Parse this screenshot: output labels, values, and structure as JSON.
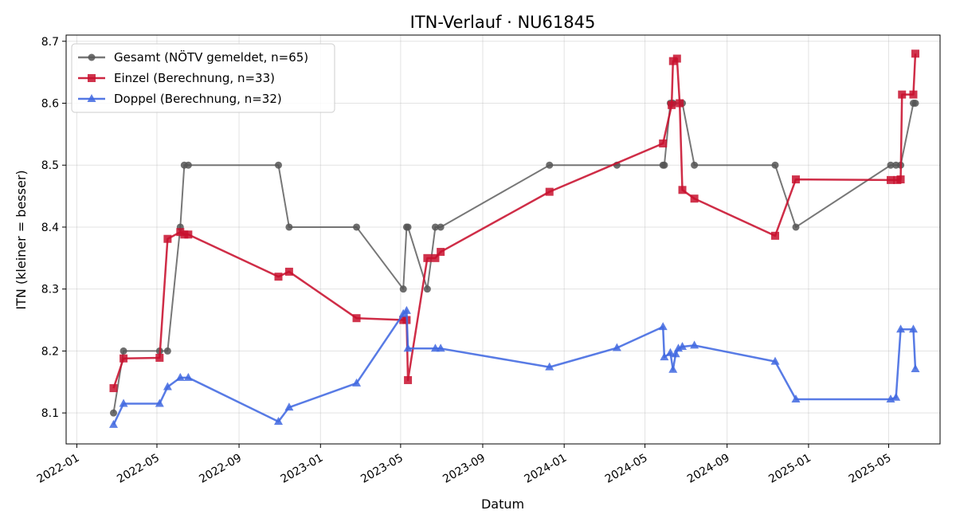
{
  "chart_data": {
    "type": "line",
    "title": "ITN-Verlauf · NU61845",
    "xlabel": "Datum",
    "ylabel": "ITN  (kleiner = besser)",
    "xlim": [
      "2021-12-16",
      "2025-07-17"
    ],
    "ylim": [
      8.05,
      8.71
    ],
    "x_ticks": [
      "2022-01-01",
      "2022-05-01",
      "2022-09-01",
      "2023-01-01",
      "2023-05-01",
      "2023-09-01",
      "2024-01-01",
      "2024-05-01",
      "2024-09-01",
      "2025-01-01",
      "2025-05-01"
    ],
    "x_tick_labels": [
      "2022-01",
      "2022-05",
      "2022-09",
      "2023-01",
      "2023-05",
      "2023-09",
      "2024-01",
      "2024-05",
      "2024-09",
      "2025-01",
      "2025-05"
    ],
    "y_ticks": [
      8.1,
      8.2,
      8.3,
      8.4,
      8.5,
      8.6,
      8.7
    ],
    "y_tick_labels": [
      "8.1",
      "8.2",
      "8.3",
      "8.4",
      "8.5",
      "8.6",
      "8.7"
    ],
    "grid": true,
    "legend_position": "top-left",
    "series": [
      {
        "name": "Gesamt (NÖTV gemeldet, n=65)",
        "color": "#555555",
        "marker": "circle",
        "points": [
          [
            "2022-02-25",
            8.1
          ],
          [
            "2022-03-12",
            8.2
          ],
          [
            "2022-05-05",
            8.2
          ],
          [
            "2022-05-17",
            8.2
          ],
          [
            "2022-06-05",
            8.4
          ],
          [
            "2022-06-11",
            8.5
          ],
          [
            "2022-06-17",
            8.5
          ],
          [
            "2022-10-30",
            8.5
          ],
          [
            "2022-11-15",
            8.4
          ],
          [
            "2023-02-24",
            8.4
          ],
          [
            "2023-05-05",
            8.3
          ],
          [
            "2023-05-10",
            8.4
          ],
          [
            "2023-05-12",
            8.4
          ],
          [
            "2023-06-10",
            8.3
          ],
          [
            "2023-06-22",
            8.4
          ],
          [
            "2023-06-30",
            8.4
          ],
          [
            "2023-12-10",
            8.5
          ],
          [
            "2024-03-20",
            8.5
          ],
          [
            "2024-05-28",
            8.5
          ],
          [
            "2024-05-30",
            8.5
          ],
          [
            "2024-06-08",
            8.6
          ],
          [
            "2024-06-12",
            8.6
          ],
          [
            "2024-06-26",
            8.6
          ],
          [
            "2024-07-14",
            8.5
          ],
          [
            "2024-11-12",
            8.5
          ],
          [
            "2024-12-13",
            8.4
          ],
          [
            "2025-05-04",
            8.5
          ],
          [
            "2025-05-12",
            8.5
          ],
          [
            "2025-05-19",
            8.5
          ],
          [
            "2025-06-07",
            8.6
          ],
          [
            "2025-06-10",
            8.6
          ]
        ]
      },
      {
        "name": "Einzel (Berechnung, n=33)",
        "color": "#c8102e",
        "marker": "square",
        "points": [
          [
            "2022-02-25",
            8.14
          ],
          [
            "2022-03-12",
            8.188
          ],
          [
            "2022-05-05",
            8.189
          ],
          [
            "2022-05-17",
            8.381
          ],
          [
            "2022-06-05",
            8.392
          ],
          [
            "2022-06-11",
            8.388
          ],
          [
            "2022-06-17",
            8.388
          ],
          [
            "2022-10-30",
            8.32
          ],
          [
            "2022-11-15",
            8.328
          ],
          [
            "2023-02-24",
            8.253
          ],
          [
            "2023-05-05",
            8.25
          ],
          [
            "2023-05-10",
            8.25
          ],
          [
            "2023-05-12",
            8.153
          ],
          [
            "2023-06-10",
            8.35
          ],
          [
            "2023-06-22",
            8.35
          ],
          [
            "2023-06-30",
            8.36
          ],
          [
            "2023-12-10",
            8.457
          ],
          [
            "2024-05-28",
            8.535
          ],
          [
            "2024-06-10",
            8.597
          ],
          [
            "2024-06-12",
            8.668
          ],
          [
            "2024-06-18",
            8.672
          ],
          [
            "2024-06-22",
            8.6
          ],
          [
            "2024-06-26",
            8.46
          ],
          [
            "2024-07-14",
            8.446
          ],
          [
            "2024-11-12",
            8.386
          ],
          [
            "2024-12-13",
            8.477
          ],
          [
            "2025-05-04",
            8.476
          ],
          [
            "2025-05-14",
            8.476
          ],
          [
            "2025-05-19",
            8.477
          ],
          [
            "2025-05-21",
            8.614
          ],
          [
            "2025-06-07",
            8.614
          ],
          [
            "2025-06-10",
            8.68
          ]
        ]
      },
      {
        "name": "Doppel (Berechnung, n=32)",
        "color": "#4169e1",
        "marker": "triangle",
        "points": [
          [
            "2022-02-25",
            8.081
          ],
          [
            "2022-03-12",
            8.115
          ],
          [
            "2022-05-05",
            8.115
          ],
          [
            "2022-05-17",
            8.142
          ],
          [
            "2022-06-05",
            8.157
          ],
          [
            "2022-06-17",
            8.157
          ],
          [
            "2022-10-30",
            8.086
          ],
          [
            "2022-11-15",
            8.109
          ],
          [
            "2023-02-24",
            8.148
          ],
          [
            "2023-05-05",
            8.26
          ],
          [
            "2023-05-10",
            8.265
          ],
          [
            "2023-05-12",
            8.204
          ],
          [
            "2023-06-22",
            8.204
          ],
          [
            "2023-06-30",
            8.204
          ],
          [
            "2023-12-10",
            8.174
          ],
          [
            "2024-03-20",
            8.205
          ],
          [
            "2024-05-28",
            8.239
          ],
          [
            "2024-05-30",
            8.19
          ],
          [
            "2024-06-08",
            8.197
          ],
          [
            "2024-06-12",
            8.17
          ],
          [
            "2024-06-16",
            8.195
          ],
          [
            "2024-06-20",
            8.204
          ],
          [
            "2024-06-26",
            8.207
          ],
          [
            "2024-07-14",
            8.209
          ],
          [
            "2024-11-12",
            8.183
          ],
          [
            "2024-12-13",
            8.122
          ],
          [
            "2025-05-04",
            8.122
          ],
          [
            "2025-05-12",
            8.125
          ],
          [
            "2025-05-19",
            8.235
          ],
          [
            "2025-06-07",
            8.235
          ],
          [
            "2025-06-10",
            8.171
          ]
        ]
      }
    ]
  }
}
